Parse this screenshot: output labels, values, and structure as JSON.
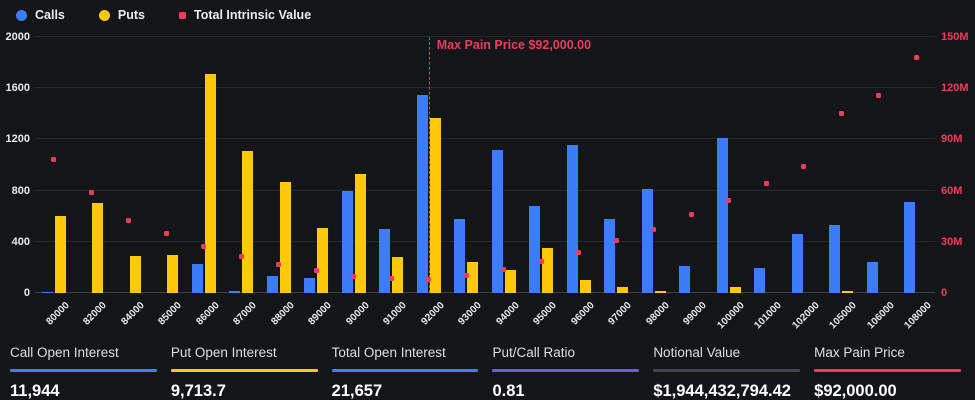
{
  "colors": {
    "background": "#141519",
    "calls_blue": "#3c7cfa",
    "puts_yellow": "#ffc90a",
    "intrinsic_pink": "#f03a5f",
    "ratio_purple": "#6a5ae8",
    "notional_gray": "#41454d",
    "grid": "#26282c"
  },
  "legend": {
    "items": [
      {
        "id": "calls",
        "label": "Calls",
        "color": "#3c7cfa",
        "marker": "circle"
      },
      {
        "id": "puts",
        "label": "Puts",
        "color": "#ffc90a",
        "marker": "circle"
      },
      {
        "id": "tiv",
        "label": "Total Intrinsic Value",
        "color": "#f03a5f",
        "marker": "square"
      }
    ]
  },
  "chart_data": {
    "type": "bar",
    "subtype": "dual-axis grouped bars with scatter overlay",
    "categories": [
      "80000",
      "82000",
      "84000",
      "85000",
      "86000",
      "87000",
      "88000",
      "89000",
      "90000",
      "91000",
      "92000",
      "93000",
      "94000",
      "95000",
      "96000",
      "97000",
      "98000",
      "99000",
      "100000",
      "101000",
      "102000",
      "105000",
      "106000",
      "108000"
    ],
    "series": [
      {
        "name": "Calls",
        "type": "bar",
        "axis": "left",
        "color": "#3c7cfa",
        "values": [
          10,
          0,
          0,
          0,
          225,
          15,
          130,
          115,
          800,
          500,
          1550,
          575,
          1120,
          680,
          1160,
          580,
          810,
          210,
          1210,
          195,
          460,
          535,
          240,
          710
        ]
      },
      {
        "name": "Puts",
        "type": "bar",
        "axis": "left",
        "color": "#ffc90a",
        "values": [
          600,
          700,
          290,
          295,
          1710,
          1110,
          865,
          510,
          930,
          280,
          1365,
          240,
          180,
          350,
          100,
          50,
          15,
          0,
          45,
          0,
          0,
          15,
          0,
          0
        ]
      },
      {
        "name": "Total Intrinsic Value",
        "type": "scatter",
        "axis": "right",
        "color": "#f03a5f",
        "values_millions": [
          78,
          59,
          42.5,
          35,
          27,
          21.5,
          17,
          13,
          9.8,
          8.7,
          8.2,
          10.3,
          14,
          18.5,
          24,
          30.5,
          37.5,
          46,
          54,
          64,
          74,
          105,
          116,
          138
        ]
      }
    ],
    "left_axis": {
      "range": [
        0,
        2000
      ],
      "ticks": [
        "0",
        "400",
        "800",
        "1200",
        "1600",
        "2000"
      ]
    },
    "right_axis": {
      "range_millions": [
        0,
        150
      ],
      "ticks": [
        "0",
        "30M",
        "60M",
        "90M",
        "120M",
        "150M"
      ]
    },
    "grid": true,
    "legend_position": "top-left",
    "annotation": {
      "label": "Max Pain Price $92,000.00",
      "category": "92000",
      "color": "#f03a5f"
    }
  },
  "stats": [
    {
      "label": "Call Open Interest",
      "value": "11,944",
      "line_color": "#3c7cfa"
    },
    {
      "label": "Put Open Interest",
      "value": "9,713.7",
      "line_color": "#ffc90a"
    },
    {
      "label": "Total Open Interest",
      "value": "21,657",
      "line_color": "#3c7cfa"
    },
    {
      "label": "Put/Call Ratio",
      "value": "0.81",
      "line_color": "#6a5ae8"
    },
    {
      "label": "Notional Value",
      "value": "$1,944,432,794.42",
      "line_color": "#41454d"
    },
    {
      "label": "Max Pain Price",
      "value": "$92,000.00",
      "line_color": "#f03a5f"
    }
  ]
}
